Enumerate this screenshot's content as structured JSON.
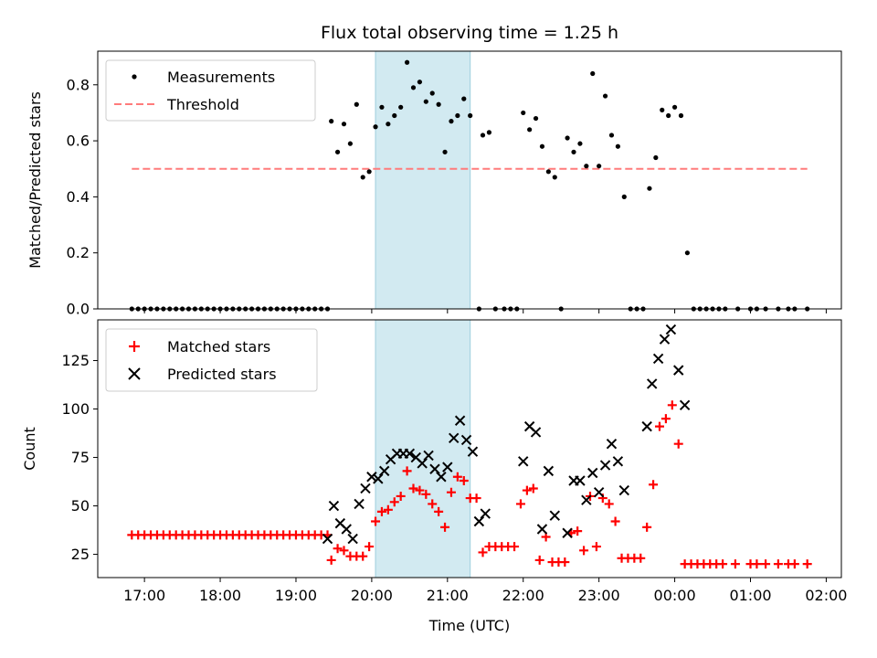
{
  "chart_data": [
    {
      "type": "scatter",
      "title": "Flux total observing time = 1.25 h",
      "xlabel": "",
      "ylabel": "Matched/Predicted stars",
      "ylim": [
        0,
        0.92
      ],
      "yticks": [
        0.0,
        0.2,
        0.4,
        0.6,
        0.8
      ],
      "ytick_labels": [
        "0.0",
        "0.2",
        "0.4",
        "0.6",
        "0.8"
      ],
      "legend_position": "upper-left",
      "highlight_span": {
        "x_start": "20:03",
        "x_end": "21:18",
        "color": "#add8e6"
      },
      "series": [
        {
          "name": "Measurements",
          "marker": "dot",
          "color": "#000000",
          "points": [
            [
              "16:50",
              0
            ],
            [
              "16:55",
              0
            ],
            [
              "17:00",
              0
            ],
            [
              "17:05",
              0
            ],
            [
              "17:10",
              0
            ],
            [
              "17:15",
              0
            ],
            [
              "17:20",
              0
            ],
            [
              "17:25",
              0
            ],
            [
              "17:30",
              0
            ],
            [
              "17:35",
              0
            ],
            [
              "17:40",
              0
            ],
            [
              "17:45",
              0
            ],
            [
              "17:50",
              0
            ],
            [
              "17:55",
              0
            ],
            [
              "18:00",
              0
            ],
            [
              "18:05",
              0
            ],
            [
              "18:10",
              0
            ],
            [
              "18:15",
              0
            ],
            [
              "18:20",
              0
            ],
            [
              "18:25",
              0
            ],
            [
              "18:30",
              0
            ],
            [
              "18:35",
              0
            ],
            [
              "18:40",
              0
            ],
            [
              "18:45",
              0
            ],
            [
              "18:50",
              0
            ],
            [
              "18:55",
              0
            ],
            [
              "19:00",
              0
            ],
            [
              "19:05",
              0
            ],
            [
              "19:10",
              0
            ],
            [
              "19:15",
              0
            ],
            [
              "19:20",
              0
            ],
            [
              "19:25",
              0
            ],
            [
              "19:28",
              0.67
            ],
            [
              "19:33",
              0.56
            ],
            [
              "19:38",
              0.66
            ],
            [
              "19:43",
              0.59
            ],
            [
              "19:48",
              0.73
            ],
            [
              "19:53",
              0.47
            ],
            [
              "19:58",
              0.49
            ],
            [
              "20:03",
              0.65
            ],
            [
              "20:08",
              0.72
            ],
            [
              "20:13",
              0.66
            ],
            [
              "20:18",
              0.69
            ],
            [
              "20:23",
              0.72
            ],
            [
              "20:28",
              0.88
            ],
            [
              "20:33",
              0.79
            ],
            [
              "20:38",
              0.81
            ],
            [
              "20:43",
              0.74
            ],
            [
              "20:48",
              0.77
            ],
            [
              "20:53",
              0.73
            ],
            [
              "20:58",
              0.56
            ],
            [
              "21:03",
              0.67
            ],
            [
              "21:08",
              0.69
            ],
            [
              "21:13",
              0.75
            ],
            [
              "21:18",
              0.69
            ],
            [
              "21:25",
              0
            ],
            [
              "21:28",
              0.62
            ],
            [
              "21:33",
              0.63
            ],
            [
              "21:38",
              0
            ],
            [
              "21:45",
              0
            ],
            [
              "21:50",
              0
            ],
            [
              "21:55",
              0
            ],
            [
              "22:00",
              0.7
            ],
            [
              "22:05",
              0.64
            ],
            [
              "22:10",
              0.68
            ],
            [
              "22:15",
              0.58
            ],
            [
              "22:20",
              0.49
            ],
            [
              "22:25",
              0.47
            ],
            [
              "22:30",
              0
            ],
            [
              "22:35",
              0.61
            ],
            [
              "22:40",
              0.56
            ],
            [
              "22:45",
              0.59
            ],
            [
              "22:50",
              0.51
            ],
            [
              "22:55",
              0.84
            ],
            [
              "23:00",
              0.51
            ],
            [
              "23:05",
              0.76
            ],
            [
              "23:10",
              0.62
            ],
            [
              "23:15",
              0.58
            ],
            [
              "23:20",
              0.4
            ],
            [
              "23:25",
              0
            ],
            [
              "23:30",
              0
            ],
            [
              "23:35",
              0
            ],
            [
              "23:40",
              0.43
            ],
            [
              "23:45",
              0.54
            ],
            [
              "23:50",
              0.71
            ],
            [
              "23:55",
              0.69
            ],
            [
              "00:00",
              0.72
            ],
            [
              "00:05",
              0.69
            ],
            [
              "00:10",
              0.2
            ],
            [
              "00:15",
              0
            ],
            [
              "00:20",
              0
            ],
            [
              "00:25",
              0
            ],
            [
              "00:30",
              0
            ],
            [
              "00:35",
              0
            ],
            [
              "00:40",
              0
            ],
            [
              "00:50",
              0
            ],
            [
              "01:00",
              0
            ],
            [
              "01:05",
              0
            ],
            [
              "01:12",
              0
            ],
            [
              "01:22",
              0
            ],
            [
              "01:30",
              0
            ],
            [
              "01:35",
              0
            ],
            [
              "01:45",
              0
            ]
          ]
        },
        {
          "name": "Threshold",
          "line_style": "dashed",
          "color": "#ff7b7b",
          "points": [
            [
              "16:50",
              0.5
            ],
            [
              "01:45",
              0.5
            ]
          ]
        }
      ]
    },
    {
      "type": "scatter",
      "title": "",
      "xlabel": "Time (UTC)",
      "ylabel": "Count",
      "ylim": [
        13,
        146
      ],
      "yticks": [
        25,
        50,
        75,
        100,
        125
      ],
      "ytick_labels": [
        "25",
        "50",
        "75",
        "100",
        "125"
      ],
      "x_range": [
        "16:23",
        "02:12"
      ],
      "xticks": [
        "17:00",
        "18:00",
        "19:00",
        "20:00",
        "21:00",
        "22:00",
        "23:00",
        "00:00",
        "01:00",
        "02:00"
      ],
      "legend_position": "upper-left",
      "highlight_span": {
        "x_start": "20:03",
        "x_end": "21:18",
        "color": "#add8e6"
      },
      "series": [
        {
          "name": "Matched stars",
          "marker": "plus",
          "color": "#ff0000",
          "points": [
            [
              "16:50",
              35
            ],
            [
              "16:55",
              35
            ],
            [
              "17:00",
              35
            ],
            [
              "17:05",
              35
            ],
            [
              "17:10",
              35
            ],
            [
              "17:15",
              35
            ],
            [
              "17:20",
              35
            ],
            [
              "17:25",
              35
            ],
            [
              "17:30",
              35
            ],
            [
              "17:35",
              35
            ],
            [
              "17:40",
              35
            ],
            [
              "17:45",
              35
            ],
            [
              "17:50",
              35
            ],
            [
              "17:55",
              35
            ],
            [
              "18:00",
              35
            ],
            [
              "18:05",
              35
            ],
            [
              "18:10",
              35
            ],
            [
              "18:15",
              35
            ],
            [
              "18:20",
              35
            ],
            [
              "18:25",
              35
            ],
            [
              "18:30",
              35
            ],
            [
              "18:35",
              35
            ],
            [
              "18:40",
              35
            ],
            [
              "18:45",
              35
            ],
            [
              "18:50",
              35
            ],
            [
              "18:55",
              35
            ],
            [
              "19:00",
              35
            ],
            [
              "19:05",
              35
            ],
            [
              "19:10",
              35
            ],
            [
              "19:15",
              35
            ],
            [
              "19:20",
              35
            ],
            [
              "19:25",
              35
            ],
            [
              "19:28",
              22
            ],
            [
              "19:33",
              28
            ],
            [
              "19:38",
              27
            ],
            [
              "19:43",
              24
            ],
            [
              "19:48",
              24
            ],
            [
              "19:53",
              24
            ],
            [
              "19:58",
              29
            ],
            [
              "20:03",
              42
            ],
            [
              "20:08",
              47
            ],
            [
              "20:13",
              48
            ],
            [
              "20:18",
              52
            ],
            [
              "20:23",
              55
            ],
            [
              "20:28",
              68
            ],
            [
              "20:33",
              59
            ],
            [
              "20:38",
              58
            ],
            [
              "20:43",
              56
            ],
            [
              "20:48",
              51
            ],
            [
              "20:53",
              47
            ],
            [
              "20:58",
              39
            ],
            [
              "21:03",
              57
            ],
            [
              "21:08",
              65
            ],
            [
              "21:13",
              63
            ],
            [
              "21:18",
              54
            ],
            [
              "21:23",
              54
            ],
            [
              "21:28",
              26
            ],
            [
              "21:33",
              29
            ],
            [
              "21:38",
              29
            ],
            [
              "21:43",
              29
            ],
            [
              "21:48",
              29
            ],
            [
              "21:53",
              29
            ],
            [
              "21:58",
              51
            ],
            [
              "22:03",
              58
            ],
            [
              "22:08",
              59
            ],
            [
              "22:13",
              22
            ],
            [
              "22:18",
              34
            ],
            [
              "22:23",
              21
            ],
            [
              "22:28",
              21
            ],
            [
              "22:33",
              21
            ],
            [
              "22:38",
              36
            ],
            [
              "22:43",
              37
            ],
            [
              "22:48",
              27
            ],
            [
              "22:53",
              55
            ],
            [
              "22:58",
              29
            ],
            [
              "23:03",
              54
            ],
            [
              "23:08",
              51
            ],
            [
              "23:13",
              42
            ],
            [
              "23:18",
              23
            ],
            [
              "23:23",
              23
            ],
            [
              "23:28",
              23
            ],
            [
              "23:33",
              23
            ],
            [
              "23:38",
              39
            ],
            [
              "23:43",
              61
            ],
            [
              "23:48",
              91
            ],
            [
              "23:53",
              95
            ],
            [
              "23:58",
              102
            ],
            [
              "00:03",
              82
            ],
            [
              "00:08",
              20
            ],
            [
              "00:13",
              20
            ],
            [
              "00:18",
              20
            ],
            [
              "00:23",
              20
            ],
            [
              "00:28",
              20
            ],
            [
              "00:33",
              20
            ],
            [
              "00:38",
              20
            ],
            [
              "00:48",
              20
            ],
            [
              "01:00",
              20
            ],
            [
              "01:05",
              20
            ],
            [
              "01:12",
              20
            ],
            [
              "01:22",
              20
            ],
            [
              "01:30",
              20
            ],
            [
              "01:35",
              20
            ],
            [
              "01:45",
              20
            ]
          ]
        },
        {
          "name": "Predicted stars",
          "marker": "x",
          "color": "#000000",
          "points": [
            [
              "19:25",
              33
            ],
            [
              "19:30",
              50
            ],
            [
              "19:35",
              41
            ],
            [
              "19:40",
              38
            ],
            [
              "19:45",
              33
            ],
            [
              "19:50",
              51
            ],
            [
              "19:55",
              59
            ],
            [
              "20:00",
              65
            ],
            [
              "20:05",
              64
            ],
            [
              "20:10",
              68
            ],
            [
              "20:15",
              74
            ],
            [
              "20:20",
              77
            ],
            [
              "20:25",
              77
            ],
            [
              "20:30",
              77
            ],
            [
              "20:35",
              75
            ],
            [
              "20:40",
              72
            ],
            [
              "20:45",
              76
            ],
            [
              "20:50",
              69
            ],
            [
              "20:55",
              65
            ],
            [
              "21:00",
              70
            ],
            [
              "21:05",
              85
            ],
            [
              "21:10",
              94
            ],
            [
              "21:15",
              84
            ],
            [
              "21:20",
              78
            ],
            [
              "21:25",
              42
            ],
            [
              "21:30",
              46
            ],
            [
              "22:00",
              73
            ],
            [
              "22:05",
              91
            ],
            [
              "22:10",
              88
            ],
            [
              "22:15",
              38
            ],
            [
              "22:20",
              68
            ],
            [
              "22:25",
              45
            ],
            [
              "22:35",
              36
            ],
            [
              "22:40",
              63
            ],
            [
              "22:45",
              63
            ],
            [
              "22:50",
              53
            ],
            [
              "22:55",
              67
            ],
            [
              "23:00",
              57
            ],
            [
              "23:05",
              71
            ],
            [
              "23:10",
              82
            ],
            [
              "23:15",
              73
            ],
            [
              "23:20",
              58
            ],
            [
              "23:38",
              91
            ],
            [
              "23:42",
              113
            ],
            [
              "23:47",
              126
            ],
            [
              "23:52",
              136
            ],
            [
              "23:57",
              141
            ],
            [
              "00:03",
              120
            ],
            [
              "00:08",
              102
            ]
          ]
        }
      ]
    }
  ]
}
